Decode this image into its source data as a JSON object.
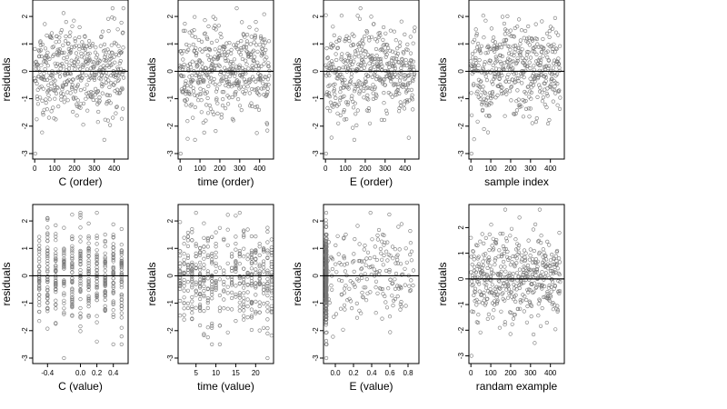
{
  "chart_data": [
    {
      "type": "scatter",
      "title": "",
      "xlabel": "C (order)",
      "ylabel": "residuals",
      "xlim": [
        -10,
        470
      ],
      "ylim": [
        -3.2,
        2.6
      ],
      "xticks": [
        0,
        100,
        200,
        300,
        400
      ],
      "xticklabels": [
        "0",
        "100",
        "200",
        "300",
        "400"
      ],
      "yticks": [
        -3,
        -2,
        -1,
        0,
        1,
        2
      ],
      "hline": 0,
      "n_points": 450,
      "x_pattern": "index",
      "y_range_observed": [
        -3.0,
        2.3
      ]
    },
    {
      "type": "scatter",
      "title": "",
      "xlabel": "time (order)",
      "ylabel": "residuals",
      "xlim": [
        -10,
        470
      ],
      "ylim": [
        -3.2,
        2.6
      ],
      "xticks": [
        0,
        100,
        200,
        300,
        400
      ],
      "xticklabels": [
        "0",
        "100",
        "200",
        "300",
        "400"
      ],
      "yticks": [
        -3,
        -2,
        -1,
        0,
        1,
        2
      ],
      "hline": 0,
      "n_points": 450,
      "x_pattern": "index",
      "y_range_observed": [
        -3.0,
        2.3
      ]
    },
    {
      "type": "scatter",
      "title": "",
      "xlabel": "E (order)",
      "ylabel": "residuals",
      "xlim": [
        -10,
        470
      ],
      "ylim": [
        -3.2,
        2.6
      ],
      "xticks": [
        0,
        100,
        200,
        300,
        400
      ],
      "xticklabels": [
        "0",
        "100",
        "200",
        "300",
        "400"
      ],
      "yticks": [
        -3,
        -2,
        -1,
        0,
        1,
        2
      ],
      "hline": 0,
      "n_points": 450,
      "x_pattern": "index",
      "y_range_observed": [
        -3.0,
        2.3
      ]
    },
    {
      "type": "scatter",
      "title": "",
      "xlabel": "sample index",
      "ylabel": "residuals",
      "xlim": [
        -10,
        470
      ],
      "ylim": [
        -3.2,
        2.6
      ],
      "xticks": [
        0,
        100,
        200,
        300,
        400
      ],
      "xticklabels": [
        "0",
        "100",
        "200",
        "300",
        "400"
      ],
      "yticks": [
        -3,
        -2,
        -1,
        0,
        1,
        2
      ],
      "hline": 0,
      "n_points": 450,
      "x_pattern": "index",
      "y_range_observed": [
        -3.0,
        2.3
      ]
    },
    {
      "type": "scatter",
      "title": "",
      "xlabel": "C (value)",
      "ylabel": "residuals",
      "xlim": [
        -0.58,
        0.58
      ],
      "ylim": [
        -3.2,
        2.6
      ],
      "xticks": [
        -0.4,
        0.0,
        0.2,
        0.4
      ],
      "xticklabels": [
        "-0.4",
        "0.0",
        "0.2",
        "0.4"
      ],
      "yticks": [
        -3,
        -2,
        -1,
        0,
        1,
        2
      ],
      "hline": 0,
      "n_points": 450,
      "x_pattern": "discrete",
      "x_levels": [
        -0.5,
        -0.4,
        -0.3,
        -0.2,
        -0.1,
        0.0,
        0.1,
        0.2,
        0.3,
        0.4,
        0.5
      ],
      "y_range_observed": [
        -3.0,
        2.3
      ]
    },
    {
      "type": "scatter",
      "title": "",
      "xlabel": "time (value)",
      "ylabel": "residuals",
      "xlim": [
        0.5,
        24.5
      ],
      "ylim": [
        -3.2,
        2.6
      ],
      "xticks": [
        5,
        10,
        15,
        20
      ],
      "xticklabels": [
        "5",
        "10",
        "15",
        "20"
      ],
      "yticks": [
        -3,
        -2,
        -1,
        0,
        1,
        2
      ],
      "hline": 0,
      "n_points": 450,
      "x_pattern": "discrete",
      "x_levels": [
        1,
        2,
        3,
        4,
        5,
        6,
        7,
        8,
        9,
        10,
        11,
        12,
        13,
        14,
        15,
        16,
        17,
        18,
        19,
        20,
        21,
        22,
        23,
        24
      ],
      "y_range_observed": [
        -3.0,
        2.3
      ]
    },
    {
      "type": "scatter",
      "title": "",
      "xlabel": "E (value)",
      "ylabel": "residuals",
      "xlim": [
        -0.13,
        0.92
      ],
      "ylim": [
        -3.2,
        2.6
      ],
      "xticks": [
        0.0,
        0.2,
        0.4,
        0.6,
        0.8
      ],
      "xticklabels": [
        "0.0",
        "0.2",
        "0.4",
        "0.6",
        "0.8"
      ],
      "yticks": [
        -3,
        -2,
        -1,
        0,
        1,
        2
      ],
      "hline": 0,
      "n_points": 450,
      "x_pattern": "clustered",
      "cluster_x": -0.1,
      "y_range_observed": [
        -3.0,
        2.3
      ]
    },
    {
      "type": "scatter",
      "title": "",
      "xlabel": "randam example",
      "ylabel": "residuals",
      "xlim": [
        -10,
        470
      ],
      "ylim": [
        -3.3,
        2.9
      ],
      "xticks": [
        0,
        100,
        200,
        300,
        400
      ],
      "xticklabels": [
        "0",
        "100",
        "200",
        "300",
        "400"
      ],
      "yticks": [
        -3,
        -2,
        -1,
        0,
        1,
        2
      ],
      "hline": 0,
      "n_points": 450,
      "x_pattern": "index",
      "y_range_observed": [
        -3.0,
        2.7
      ]
    }
  ]
}
